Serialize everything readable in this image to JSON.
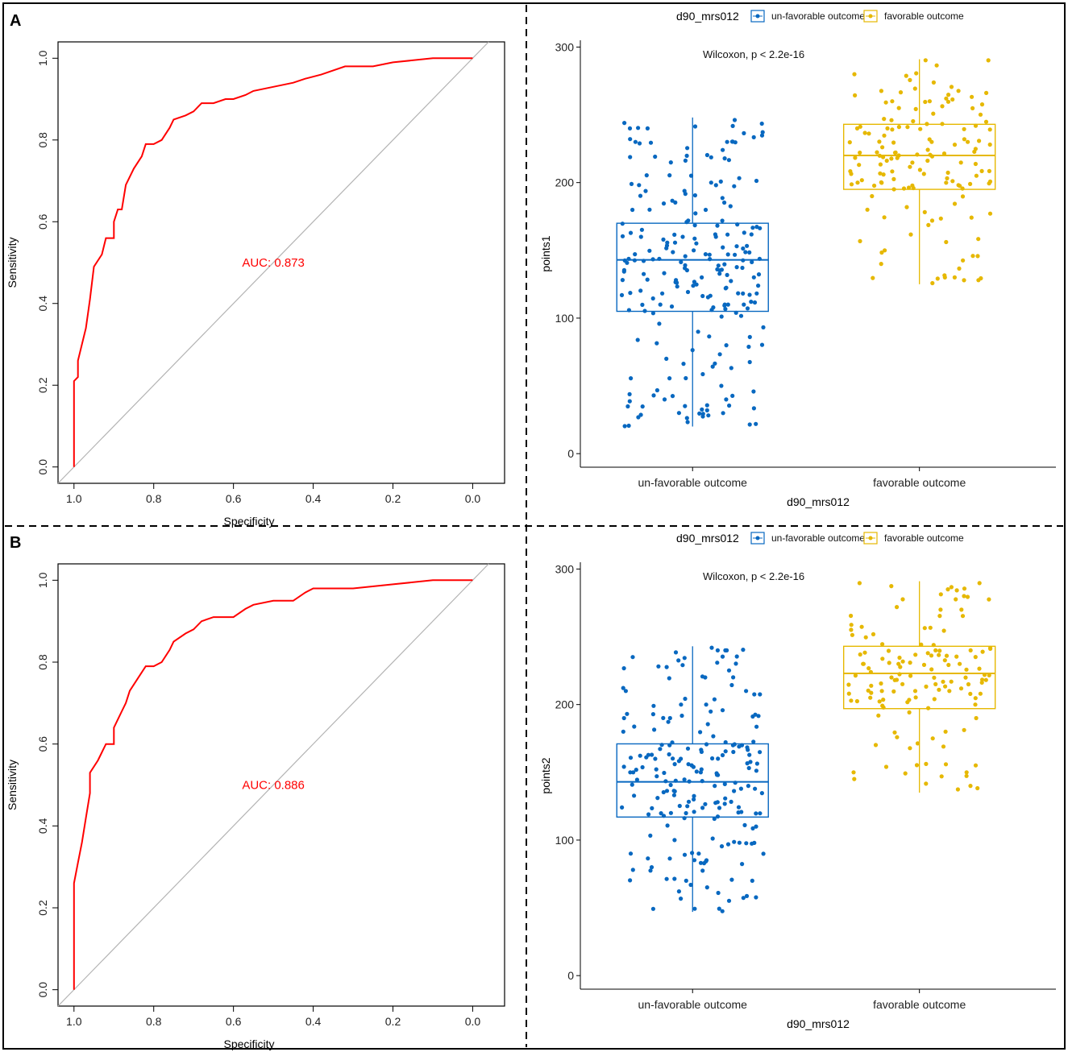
{
  "colors": {
    "roc": "#ff0000",
    "diagonal": "#b3b3b3",
    "unfav": "#0868c0",
    "fav": "#e6b800"
  },
  "chart_data": [
    {
      "panel": "A",
      "type": "line",
      "subtype": "roc",
      "xlabel": "Specificity",
      "ylabel": "Sensitivity",
      "xlim": [
        1.04,
        -0.08
      ],
      "ylim": [
        -0.04,
        1.04
      ],
      "xticks": [
        "1.0",
        "0.8",
        "0.6",
        "0.4",
        "0.2",
        "0.0"
      ],
      "yticks": [
        "0.0",
        "0.2",
        "0.4",
        "0.6",
        "0.8",
        "1.0"
      ],
      "auc_label": "AUC: 0.873",
      "roc": [
        [
          1.0,
          0.0
        ],
        [
          1.0,
          0.21
        ],
        [
          0.99,
          0.22
        ],
        [
          0.99,
          0.26
        ],
        [
          0.97,
          0.34
        ],
        [
          0.96,
          0.41
        ],
        [
          0.95,
          0.49
        ],
        [
          0.93,
          0.52
        ],
        [
          0.92,
          0.56
        ],
        [
          0.9,
          0.56
        ],
        [
          0.9,
          0.6
        ],
        [
          0.89,
          0.63
        ],
        [
          0.88,
          0.63
        ],
        [
          0.87,
          0.69
        ],
        [
          0.85,
          0.73
        ],
        [
          0.83,
          0.76
        ],
        [
          0.82,
          0.79
        ],
        [
          0.8,
          0.79
        ],
        [
          0.78,
          0.8
        ],
        [
          0.76,
          0.83
        ],
        [
          0.75,
          0.85
        ],
        [
          0.72,
          0.86
        ],
        [
          0.7,
          0.87
        ],
        [
          0.68,
          0.89
        ],
        [
          0.65,
          0.89
        ],
        [
          0.62,
          0.9
        ],
        [
          0.6,
          0.9
        ],
        [
          0.57,
          0.91
        ],
        [
          0.55,
          0.92
        ],
        [
          0.5,
          0.93
        ],
        [
          0.45,
          0.94
        ],
        [
          0.42,
          0.95
        ],
        [
          0.38,
          0.96
        ],
        [
          0.32,
          0.98
        ],
        [
          0.25,
          0.98
        ],
        [
          0.2,
          0.99
        ],
        [
          0.1,
          1.0
        ],
        [
          0.0,
          1.0
        ]
      ]
    },
    {
      "panel": "A",
      "type": "box",
      "legend_title": "d90_mrs012",
      "legend": [
        "un-favorable outcome",
        "favorable outcome"
      ],
      "categories": [
        "un-favorable outcome",
        "favorable outcome"
      ],
      "xlabel": "d90_mrs012",
      "ylabel": "points1",
      "ylim": [
        -10,
        305
      ],
      "yticks": [
        "0",
        "100",
        "200",
        "300"
      ],
      "annotation": "Wilcoxon, p < 2.2e-16",
      "boxes": [
        {
          "min": 20,
          "q1": 105,
          "median": 143,
          "q3": 170,
          "max": 248
        },
        {
          "min": 125,
          "q1": 195,
          "median": 220,
          "q3": 243,
          "max": 291
        }
      ],
      "n_points": [
        230,
        150
      ]
    },
    {
      "panel": "B",
      "type": "line",
      "subtype": "roc",
      "xlabel": "Specificity",
      "ylabel": "Sensitivity",
      "xlim": [
        1.04,
        -0.08
      ],
      "ylim": [
        -0.04,
        1.04
      ],
      "xticks": [
        "1.0",
        "0.8",
        "0.6",
        "0.4",
        "0.2",
        "0.0"
      ],
      "yticks": [
        "0.0",
        "0.2",
        "0.4",
        "0.6",
        "0.8",
        "1.0"
      ],
      "auc_label": "AUC: 0.886",
      "roc": [
        [
          1.0,
          0.0
        ],
        [
          1.0,
          0.26
        ],
        [
          0.99,
          0.31
        ],
        [
          0.98,
          0.36
        ],
        [
          0.97,
          0.42
        ],
        [
          0.96,
          0.48
        ],
        [
          0.96,
          0.53
        ],
        [
          0.94,
          0.56
        ],
        [
          0.92,
          0.6
        ],
        [
          0.9,
          0.6
        ],
        [
          0.9,
          0.64
        ],
        [
          0.88,
          0.68
        ],
        [
          0.87,
          0.7
        ],
        [
          0.86,
          0.73
        ],
        [
          0.84,
          0.76
        ],
        [
          0.82,
          0.79
        ],
        [
          0.8,
          0.79
        ],
        [
          0.78,
          0.8
        ],
        [
          0.76,
          0.83
        ],
        [
          0.75,
          0.85
        ],
        [
          0.72,
          0.87
        ],
        [
          0.7,
          0.88
        ],
        [
          0.68,
          0.9
        ],
        [
          0.65,
          0.91
        ],
        [
          0.6,
          0.91
        ],
        [
          0.57,
          0.93
        ],
        [
          0.55,
          0.94
        ],
        [
          0.5,
          0.95
        ],
        [
          0.45,
          0.95
        ],
        [
          0.42,
          0.97
        ],
        [
          0.4,
          0.98
        ],
        [
          0.3,
          0.98
        ],
        [
          0.2,
          0.99
        ],
        [
          0.1,
          1.0
        ],
        [
          0.0,
          1.0
        ]
      ]
    },
    {
      "panel": "B",
      "type": "box",
      "legend_title": "d90_mrs012",
      "legend": [
        "un-favorable outcome",
        "favorable outcome"
      ],
      "categories": [
        "un-favorable outcome",
        "favorable outcome"
      ],
      "xlabel": "d90_mrs012",
      "ylabel": "points2",
      "ylim": [
        -10,
        305
      ],
      "yticks": [
        "0",
        "100",
        "200",
        "300"
      ],
      "annotation": "Wilcoxon, p < 2.2e-16",
      "boxes": [
        {
          "min": 47,
          "q1": 117,
          "median": 143,
          "q3": 171,
          "max": 243
        },
        {
          "min": 135,
          "q1": 197,
          "median": 223,
          "q3": 243,
          "max": 291
        }
      ],
      "n_points": [
        210,
        140
      ]
    }
  ]
}
